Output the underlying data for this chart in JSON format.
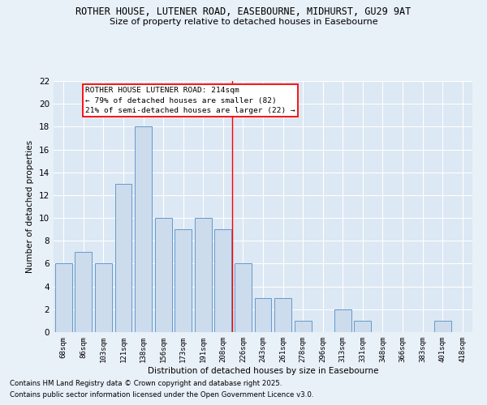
{
  "title": "ROTHER HOUSE, LUTENER ROAD, EASEBOURNE, MIDHURST, GU29 9AT",
  "subtitle": "Size of property relative to detached houses in Easebourne",
  "xlabel": "Distribution of detached houses by size in Easebourne",
  "ylabel": "Number of detached properties",
  "categories": [
    "68sqm",
    "86sqm",
    "103sqm",
    "121sqm",
    "138sqm",
    "156sqm",
    "173sqm",
    "191sqm",
    "208sqm",
    "226sqm",
    "243sqm",
    "261sqm",
    "278sqm",
    "296sqm",
    "313sqm",
    "331sqm",
    "348sqm",
    "366sqm",
    "383sqm",
    "401sqm",
    "418sqm"
  ],
  "values": [
    6,
    7,
    6,
    13,
    18,
    10,
    9,
    10,
    9,
    6,
    3,
    3,
    1,
    0,
    2,
    1,
    0,
    0,
    0,
    1,
    0
  ],
  "bar_color": "#ccdcec",
  "bar_edge_color": "#6699cc",
  "ylim": [
    0,
    22
  ],
  "yticks": [
    0,
    2,
    4,
    6,
    8,
    10,
    12,
    14,
    16,
    18,
    20,
    22
  ],
  "vline_x_index": 8.44,
  "annotation_line1": "ROTHER HOUSE LUTENER ROAD: 214sqm",
  "annotation_line2": "← 79% of detached houses are smaller (82)",
  "annotation_line3": "21% of semi-detached houses are larger (22) →",
  "footnote1": "Contains HM Land Registry data © Crown copyright and database right 2025.",
  "footnote2": "Contains public sector information licensed under the Open Government Licence v3.0.",
  "bg_color": "#e8f0f8",
  "plot_bg_color": "#dce8f4"
}
